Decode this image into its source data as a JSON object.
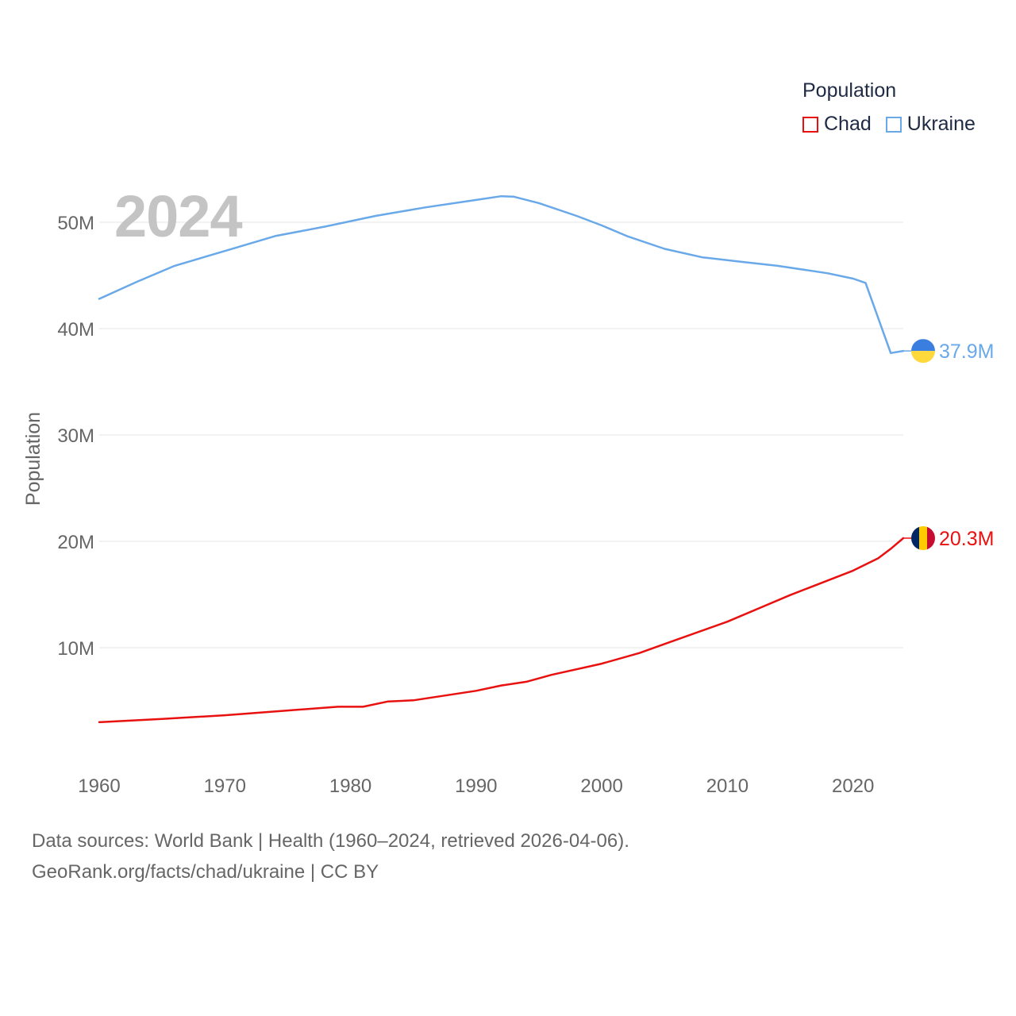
{
  "chart_data": {
    "type": "line",
    "year_label": "2024",
    "ylabel": "Population",
    "ylim": [
      0,
      55000000
    ],
    "yticks": [
      10000000,
      20000000,
      30000000,
      40000000,
      50000000
    ],
    "ytick_labels": [
      "10M",
      "20M",
      "30M",
      "40M",
      "50M"
    ],
    "xlim": [
      1960,
      2024
    ],
    "xticks": [
      1960,
      1970,
      1980,
      1990,
      2000,
      2010,
      2020
    ],
    "xtick_labels": [
      "1960",
      "1970",
      "1980",
      "1990",
      "2000",
      "2010",
      "2020"
    ],
    "legend_title": "Population",
    "series": [
      {
        "name": "Chad",
        "color": "#e8110f",
        "end_label": "20.3M",
        "flag": "chad",
        "points": [
          [
            1960,
            3000000
          ],
          [
            1965,
            3300000
          ],
          [
            1970,
            3650000
          ],
          [
            1975,
            4100000
          ],
          [
            1979,
            4450000
          ],
          [
            1981,
            4450000
          ],
          [
            1983,
            4950000
          ],
          [
            1985,
            5050000
          ],
          [
            1990,
            5950000
          ],
          [
            1992,
            6450000
          ],
          [
            1994,
            6800000
          ],
          [
            1996,
            7450000
          ],
          [
            2000,
            8500000
          ],
          [
            2003,
            9500000
          ],
          [
            2005,
            10350000
          ],
          [
            2010,
            12450000
          ],
          [
            2015,
            14950000
          ],
          [
            2020,
            17250000
          ],
          [
            2022,
            18400000
          ],
          [
            2023,
            19300000
          ],
          [
            2024,
            20300000
          ]
        ]
      },
      {
        "name": "Ukraine",
        "color": "#6aa9e9",
        "end_label": "37.9M",
        "flag": "ukraine",
        "points": [
          [
            1960,
            42800000
          ],
          [
            1963,
            44400000
          ],
          [
            1966,
            45900000
          ],
          [
            1970,
            47300000
          ],
          [
            1974,
            48700000
          ],
          [
            1978,
            49600000
          ],
          [
            1982,
            50600000
          ],
          [
            1986,
            51400000
          ],
          [
            1990,
            52100000
          ],
          [
            1992,
            52450000
          ],
          [
            1993,
            52400000
          ],
          [
            1995,
            51800000
          ],
          [
            1998,
            50600000
          ],
          [
            2000,
            49700000
          ],
          [
            2002,
            48700000
          ],
          [
            2005,
            47500000
          ],
          [
            2008,
            46700000
          ],
          [
            2011,
            46300000
          ],
          [
            2014,
            45900000
          ],
          [
            2018,
            45200000
          ],
          [
            2020,
            44700000
          ],
          [
            2021,
            44300000
          ],
          [
            2023,
            37700000
          ],
          [
            2024,
            37900000
          ]
        ]
      }
    ]
  },
  "footer": {
    "line1": "Data sources: World Bank | Health (1960–2024, retrieved 2026-04-06).",
    "line2": "GeoRank.org/facts/chad/ukraine | CC BY"
  }
}
